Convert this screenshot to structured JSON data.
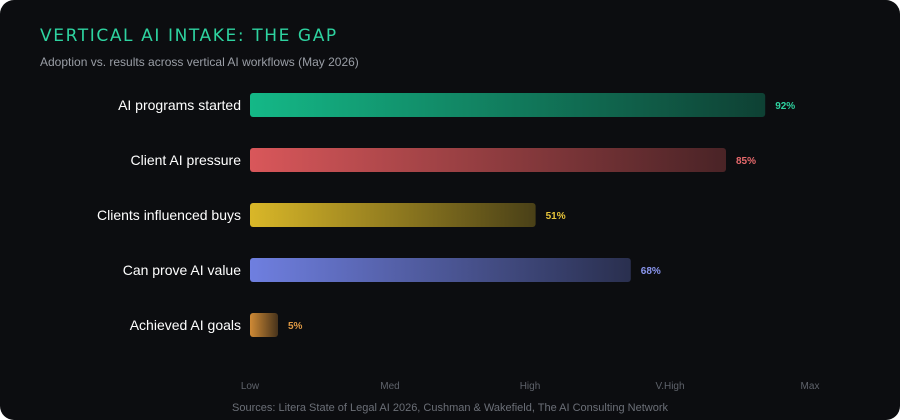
{
  "title": "VERTICAL AI INTAKE: THE GAP",
  "subtitle": "Adoption vs. results across vertical AI workflows (May 2026)",
  "source": "Sources: Litera State of Legal AI 2026, Cushman & Wakefield, The AI Consulting Network",
  "chart_data": {
    "type": "bar",
    "orientation": "horizontal",
    "title": "VERTICAL AI INTAKE: THE GAP",
    "subtitle": "Adoption vs. results across vertical AI workflows (May 2026)",
    "categories": [
      "AI programs started",
      "Client AI pressure",
      "Clients influenced buys",
      "Can prove AI value",
      "Achieved AI goals"
    ],
    "values": [
      92,
      85,
      51,
      68,
      5
    ],
    "value_labels": [
      "92%",
      "85%",
      "51%",
      "68%",
      "5%"
    ],
    "colors": [
      "#14b887",
      "#d9575a",
      "#d9b728",
      "#6f7fe0",
      "#cf8a35"
    ],
    "label_colors": [
      "#2ed3a0",
      "#e96a6d",
      "#e8c53a",
      "#8b97f0",
      "#e09a45"
    ],
    "x_ticks": [
      "Low",
      "Med",
      "High",
      "V.High",
      "Max"
    ],
    "xlim": [
      0,
      100
    ],
    "xlabel": "",
    "ylabel": "",
    "grid": false,
    "legend": "none"
  }
}
